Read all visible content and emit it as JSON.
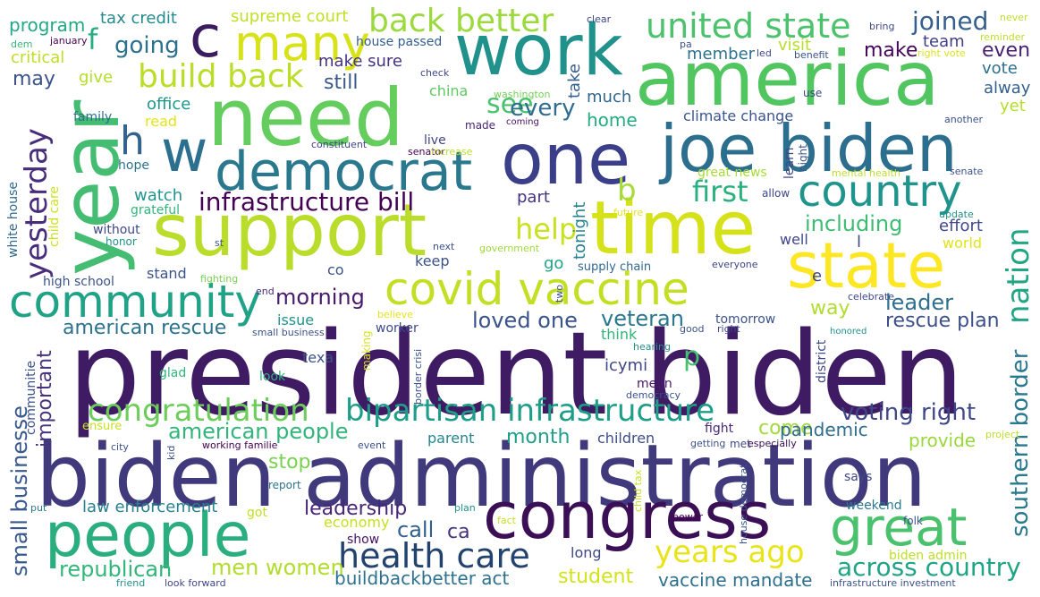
{
  "words": [
    {
      "text": "president biden",
      "color": "#3f1b63"
    },
    {
      "text": "biden administration",
      "color": "#403a7d"
    },
    {
      "text": "support",
      "color": "#b9dd2a"
    },
    {
      "text": "year",
      "color": "#44bd72"
    },
    {
      "text": "need",
      "color": "#64cd5e"
    },
    {
      "text": "work",
      "color": "#21918c"
    },
    {
      "text": "america",
      "color": "#51c55f"
    },
    {
      "text": "time",
      "color": "#d5e21a"
    },
    {
      "text": "one",
      "color": "#3b3f8a"
    },
    {
      "text": "joe biden",
      "color": "#2c6e8e"
    },
    {
      "text": "people",
      "color": "#2aae80"
    },
    {
      "text": "congress",
      "color": "#3b0f56"
    },
    {
      "text": "great",
      "color": "#4ac16d"
    },
    {
      "text": "state",
      "color": "#fde725"
    },
    {
      "text": "c",
      "color": "#3b1d5f"
    },
    {
      "text": "many",
      "color": "#d8e219"
    },
    {
      "text": "democrat",
      "color": "#2a788e"
    },
    {
      "text": "w",
      "color": "#2c6f8e"
    },
    {
      "text": "h",
      "color": "#33638d"
    },
    {
      "text": "country",
      "color": "#1f948c"
    },
    {
      "text": "covid vaccine",
      "color": "#c2df23"
    },
    {
      "text": "community",
      "color": "#20a286"
    },
    {
      "text": "back better",
      "color": "#9bd93c"
    },
    {
      "text": "united state",
      "color": "#4cc26c"
    },
    {
      "text": "build back",
      "color": "#bade28"
    },
    {
      "text": "health care",
      "color": "#23436f"
    },
    {
      "text": "bipartisan infrastructure",
      "color": "#1e9d89"
    },
    {
      "text": "congratulation",
      "color": "#6ccd5a"
    },
    {
      "text": "years ago",
      "color": "#e8e419"
    },
    {
      "text": "nation",
      "color": "#21a585"
    },
    {
      "text": "yesterday",
      "color": "#472d7b"
    },
    {
      "text": "infrastructure bill",
      "color": "#440154"
    },
    {
      "text": "first",
      "color": "#2ab07f"
    },
    {
      "text": "f",
      "color": "#27ad81"
    },
    {
      "text": "going",
      "color": "#2c728e"
    },
    {
      "text": "joined",
      "color": "#355f8d"
    },
    {
      "text": "help",
      "color": "#cae11f"
    },
    {
      "text": "see",
      "color": "#4ac16d"
    },
    {
      "text": "every",
      "color": "#2f6c8e"
    },
    {
      "text": "b",
      "color": "#a5db36"
    },
    {
      "text": "across country",
      "color": "#20a486"
    },
    {
      "text": "american people",
      "color": "#31b57b"
    },
    {
      "text": "southern border",
      "color": "#2a788e"
    },
    {
      "text": "voting right",
      "color": "#3f4788"
    },
    {
      "text": "men women",
      "color": "#b2dd2d"
    },
    {
      "text": "loved one",
      "color": "#3a538b"
    },
    {
      "text": "veteran",
      "color": "#2a788e"
    },
    {
      "text": "morning",
      "color": "#481a6c"
    },
    {
      "text": "american rescue",
      "color": "#2c728e"
    },
    {
      "text": "rescue plan",
      "color": "#3c4f8a"
    },
    {
      "text": "leader",
      "color": "#2e6f8e"
    },
    {
      "text": "including",
      "color": "#3ebc74"
    },
    {
      "text": "republican",
      "color": "#32b67a"
    },
    {
      "text": "small businesse",
      "color": "#38598c"
    },
    {
      "text": "important",
      "color": "#46337e"
    },
    {
      "text": "leadership",
      "color": "#482677"
    },
    {
      "text": "month",
      "color": "#1f9e89"
    },
    {
      "text": "student",
      "color": "#d2e21b"
    },
    {
      "text": "buildbackbetter act",
      "color": "#2c728e"
    },
    {
      "text": "vaccine mandate",
      "color": "#2d708e"
    },
    {
      "text": "law enforcement",
      "color": "#26818e"
    },
    {
      "text": "call",
      "color": "#34608d"
    },
    {
      "text": "ca",
      "color": "#46337e"
    },
    {
      "text": "stop",
      "color": "#7ad151"
    },
    {
      "text": "come",
      "color": "#a2da37"
    },
    {
      "text": "pandemic",
      "color": "#2f6c8e"
    },
    {
      "text": "provide",
      "color": "#99d83d"
    },
    {
      "text": "way",
      "color": "#b0dd2f"
    },
    {
      "text": "p",
      "color": "#46c06f"
    },
    {
      "text": "even",
      "color": "#482071"
    },
    {
      "text": "make",
      "color": "#450559"
    },
    {
      "text": "team",
      "color": "#433e85"
    },
    {
      "text": "vote",
      "color": "#2d718e"
    },
    {
      "text": "alway",
      "color": "#355f8d"
    },
    {
      "text": "yet",
      "color": "#b5de2b"
    },
    {
      "text": "member",
      "color": "#2d718e"
    },
    {
      "text": "visit",
      "color": "#b8de29"
    },
    {
      "text": "make sure",
      "color": "#46337e"
    },
    {
      "text": "still",
      "color": "#38598c"
    },
    {
      "text": "may",
      "color": "#3b528b"
    },
    {
      "text": "give",
      "color": "#b5de2b"
    },
    {
      "text": "program",
      "color": "#22a884"
    },
    {
      "text": "tax credit",
      "color": "#238a8d"
    },
    {
      "text": "supreme court",
      "color": "#c0df25"
    },
    {
      "text": "critical",
      "color": "#bddf26"
    },
    {
      "text": "house passed",
      "color": "#355e8d"
    },
    {
      "text": "office",
      "color": "#1f978b"
    },
    {
      "text": "read",
      "color": "#e5e419"
    },
    {
      "text": "family",
      "color": "#2e6e8e"
    },
    {
      "text": "china",
      "color": "#5ec962"
    },
    {
      "text": "take",
      "color": "#355f8d"
    },
    {
      "text": "home",
      "color": "#25ab82"
    },
    {
      "text": "much",
      "color": "#31678e"
    },
    {
      "text": "climate change",
      "color": "#3a548c"
    },
    {
      "text": "live",
      "color": "#414487"
    },
    {
      "text": "made",
      "color": "#482475"
    },
    {
      "text": "hope",
      "color": "#2c728e"
    },
    {
      "text": "watch",
      "color": "#1f948c"
    },
    {
      "text": "grateful",
      "color": "#31b57b"
    },
    {
      "text": "part",
      "color": "#46337e"
    },
    {
      "text": "tonight",
      "color": "#26818e"
    },
    {
      "text": "learn",
      "color": "#404688"
    },
    {
      "text": "night",
      "color": "#39568c"
    },
    {
      "text": "great news",
      "color": "#a8db34"
    },
    {
      "text": "without",
      "color": "#3f4889"
    },
    {
      "text": "honor",
      "color": "#21918c"
    },
    {
      "text": "stand",
      "color": "#3b528b"
    },
    {
      "text": "keep",
      "color": "#3b528b"
    },
    {
      "text": "go",
      "color": "#20a386"
    },
    {
      "text": "supply chain",
      "color": "#31688e"
    },
    {
      "text": "well",
      "color": "#3f4788"
    },
    {
      "text": "effort",
      "color": "#3f4788"
    },
    {
      "text": "world",
      "color": "#e1e418"
    },
    {
      "text": "issue",
      "color": "#21918c"
    },
    {
      "text": "worker",
      "color": "#3e4989"
    },
    {
      "text": "think",
      "color": "#31b57b"
    },
    {
      "text": "tomorrow",
      "color": "#3b528b"
    },
    {
      "text": "texa",
      "color": "#3b528b"
    },
    {
      "text": "icymi",
      "color": "#404688"
    },
    {
      "text": "mean",
      "color": "#48186a"
    },
    {
      "text": "district",
      "color": "#3e4989"
    },
    {
      "text": "children",
      "color": "#3e4a89"
    },
    {
      "text": "parent",
      "color": "#25858e"
    },
    {
      "text": "show",
      "color": "#471164"
    },
    {
      "text": "long",
      "color": "#3f4788"
    },
    {
      "text": "economy",
      "color": "#c8e020"
    },
    {
      "text": "report",
      "color": "#2c728e"
    },
    {
      "text": "says",
      "color": "#3f4788"
    },
    {
      "text": "weekend",
      "color": "#2a788e"
    },
    {
      "text": "biden admin",
      "color": "#bddf26"
    },
    {
      "text": "high school",
      "color": "#3b528b"
    },
    {
      "text": "white house",
      "color": "#31688e"
    },
    {
      "text": "child care",
      "color": "#cde11d"
    },
    {
      "text": "communitie",
      "color": "#3b528b"
    },
    {
      "text": "fight",
      "color": "#482878"
    },
    {
      "text": "glad",
      "color": "#31b57b"
    },
    {
      "text": "look",
      "color": "#2db27d"
    },
    {
      "text": "co",
      "color": "#3b528b"
    },
    {
      "text": "got",
      "color": "#c2df23"
    },
    {
      "text": "dem",
      "color": "#35b779"
    },
    {
      "text": "january",
      "color": "#440154"
    },
    {
      "text": "clear",
      "color": "#404688"
    },
    {
      "text": "bring",
      "color": "#3f4788"
    },
    {
      "text": "never",
      "color": "#bddf26"
    },
    {
      "text": "reminder",
      "color": "#bddf26"
    },
    {
      "text": "pa",
      "color": "#3b528b"
    },
    {
      "text": "led",
      "color": "#404688"
    },
    {
      "text": "benefit",
      "color": "#3b528b"
    },
    {
      "text": "right vote",
      "color": "#dde318"
    },
    {
      "text": "check",
      "color": "#404688"
    },
    {
      "text": "washington",
      "color": "#73d056"
    },
    {
      "text": "coming",
      "color": "#471365"
    },
    {
      "text": "use",
      "color": "#3f4788"
    },
    {
      "text": "another",
      "color": "#3b528b"
    },
    {
      "text": "constituent",
      "color": "#414487"
    },
    {
      "text": "senator",
      "color": "#440154"
    },
    {
      "text": "increase",
      "color": "#b8de29"
    },
    {
      "text": "mental health",
      "color": "#bddf26"
    },
    {
      "text": "senate",
      "color": "#3b528b"
    },
    {
      "text": "allow",
      "color": "#404688"
    },
    {
      "text": "future",
      "color": "#e5e419"
    },
    {
      "text": "update",
      "color": "#21918c"
    },
    {
      "text": "st",
      "color": "#3b528b"
    },
    {
      "text": "next",
      "color": "#3b528b"
    },
    {
      "text": "government",
      "color": "#a0da39"
    },
    {
      "text": "fighting",
      "color": "#7ad151"
    },
    {
      "text": "everyone",
      "color": "#404688"
    },
    {
      "text": "end",
      "color": "#482878"
    },
    {
      "text": "two",
      "color": "#3b528b"
    },
    {
      "text": "celebrate",
      "color": "#3f4788"
    },
    {
      "text": "e",
      "color": "#404688"
    },
    {
      "text": "l",
      "color": "#404688"
    },
    {
      "text": "small business",
      "color": "#3b528b"
    },
    {
      "text": "believe",
      "color": "#e5e419"
    },
    {
      "text": "making",
      "color": "#d5e21a"
    },
    {
      "text": "good",
      "color": "#3b528b"
    },
    {
      "text": "right",
      "color": "#3f4788"
    },
    {
      "text": "honored",
      "color": "#21918c"
    },
    {
      "text": "hearing",
      "color": "#21918c"
    },
    {
      "text": "border crisi",
      "color": "#3b528b"
    },
    {
      "text": "democracy",
      "color": "#3b528b"
    },
    {
      "text": "ensure",
      "color": "#c8e020"
    },
    {
      "text": "city",
      "color": "#3b528b"
    },
    {
      "text": "kid",
      "color": "#3b528b"
    },
    {
      "text": "working familie",
      "color": "#440154"
    },
    {
      "text": "event",
      "color": "#3b528b"
    },
    {
      "text": "child tax",
      "color": "#c8e020"
    },
    {
      "text": "getting",
      "color": "#3b528b"
    },
    {
      "text": "met",
      "color": "#3f4788"
    },
    {
      "text": "especially",
      "color": "#3b0f56"
    },
    {
      "text": "project",
      "color": "#bddf26"
    },
    {
      "text": "put",
      "color": "#2a788e"
    },
    {
      "text": "plan",
      "color": "#21918c"
    },
    {
      "text": "fact",
      "color": "#c8e020"
    },
    {
      "text": "power",
      "color": "#440154"
    },
    {
      "text": "house democrat",
      "color": "#3b528b"
    },
    {
      "text": "folk",
      "color": "#3b528b"
    },
    {
      "text": "friend",
      "color": "#21918c"
    },
    {
      "text": "look forward",
      "color": "#3f4788"
    },
    {
      "text": "infrastructure investment",
      "color": "#3b528b"
    }
  ]
}
